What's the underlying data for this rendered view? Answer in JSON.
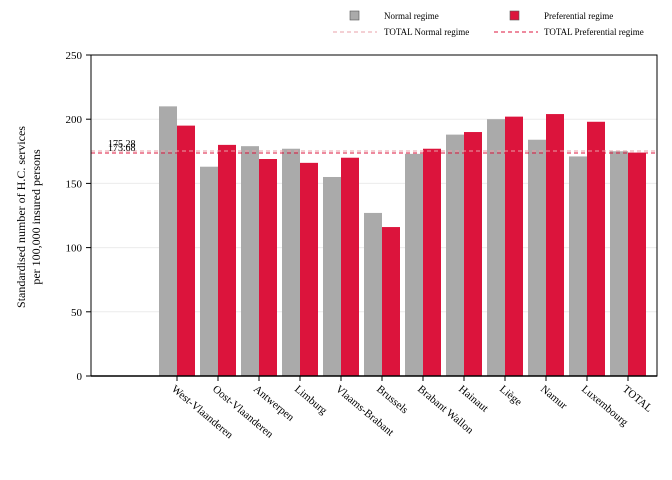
{
  "chart_data": {
    "type": "bar",
    "ylabel_lines": [
      "Standardised number of H.C. services",
      "per 100,000 insured persons"
    ],
    "ylim": [
      0,
      250
    ],
    "yticks": [
      0,
      50,
      100,
      150,
      200,
      250
    ],
    "grid": true,
    "legend_position": "top",
    "categories": [
      "West-Vlaanderen",
      "Oost-Vlaanderen",
      "Antwerpen",
      "Limburg",
      "Vlaams-Brabant",
      "Brussels",
      "Brabant Wallon",
      "Hainaut",
      "Liège",
      "Namur",
      "Luxembourg",
      "TOTAL"
    ],
    "series": [
      {
        "name": "Normal regime",
        "color": "#aaaaaa",
        "values": [
          210,
          163,
          179,
          177,
          155,
          127,
          173,
          188,
          200,
          184,
          171,
          175
        ]
      },
      {
        "name": "Preferential regime",
        "color": "#dc143c",
        "values": [
          195,
          180,
          169,
          166,
          170,
          116,
          177,
          190,
          202,
          204,
          198,
          174
        ]
      }
    ],
    "reference_lines": [
      {
        "name": "TOTAL Normal regime",
        "value": 175.28,
        "label": "175.28",
        "color": "#e8a0a8"
      },
      {
        "name": "TOTAL Preferential regime",
        "value": 173.68,
        "label": "173.68",
        "color": "#dc143c"
      }
    ]
  }
}
